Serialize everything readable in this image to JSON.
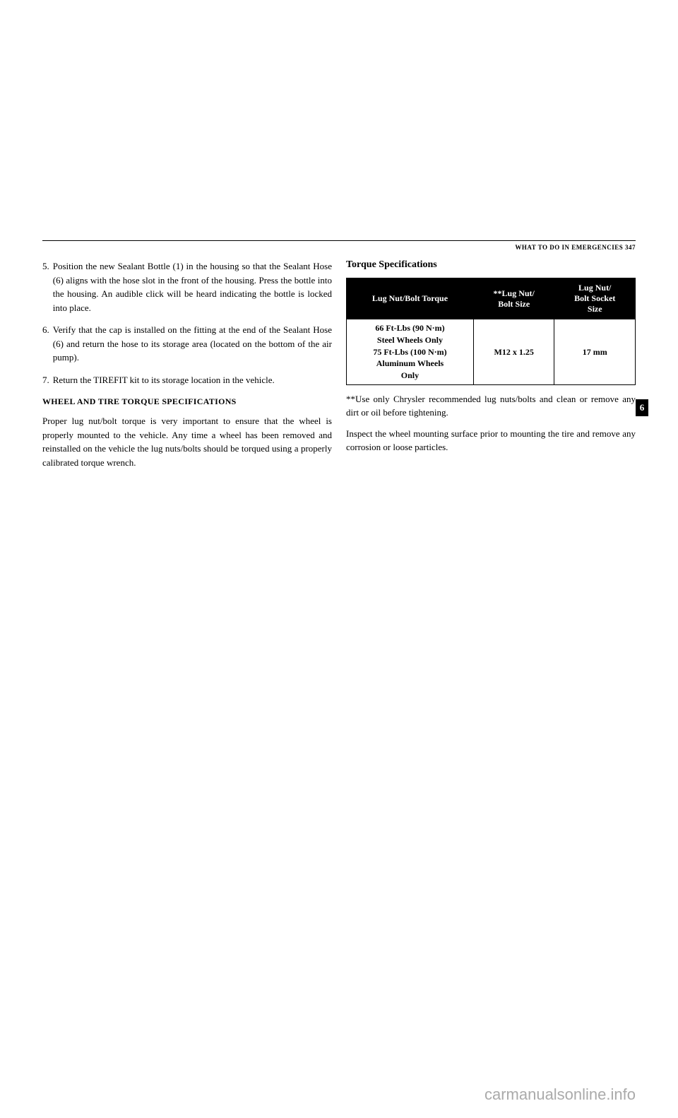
{
  "header": {
    "section": "WHAT TO DO IN EMERGENCIES",
    "page_number": "347"
  },
  "left": {
    "items": [
      {
        "num": "5.",
        "text": "Position the new Sealant Bottle (1) in the housing so that the Sealant Hose (6) aligns with the hose slot in the front of the housing. Press the bottle into the housing. An audible click will be heard indicating the bottle is locked into place."
      },
      {
        "num": "6.",
        "text": "Verify that the cap is installed on the fitting at the end of the Sealant Hose (6) and return the hose to its storage area (located on the bottom of the air pump)."
      },
      {
        "num": "7.",
        "text": "Return the TIREFIT kit to its storage location in the vehicle."
      }
    ],
    "heading": "WHEEL AND TIRE TORQUE SPECIFICATIONS",
    "paragraph": "Proper lug nut/bolt torque is very important to ensure that the wheel is properly mounted to the vehicle. Any time a wheel has been removed and reinstalled on the vehicle the lug nuts/bolts should be torqued using a properly calibrated torque wrench."
  },
  "right": {
    "heading": "Torque Specifications",
    "table": {
      "headers": [
        "Lug Nut/Bolt Torque",
        "**Lug Nut/\nBolt Size",
        "Lug Nut/\nBolt Socket\nSize"
      ],
      "row": [
        "66 Ft-Lbs (90 N·m)\nSteel Wheels Only\n75 Ft-Lbs (100 N·m)\nAluminum Wheels\nOnly",
        "M12 x 1.25",
        "17 mm"
      ]
    },
    "note": "**Use only Chrysler recommended lug nuts/bolts and clean or remove any dirt or oil before tightening.",
    "paragraph": "Inspect the wheel mounting surface prior to mounting the tire and remove any corrosion or loose particles."
  },
  "tab": "6",
  "watermark": "carmanualsonline.info"
}
